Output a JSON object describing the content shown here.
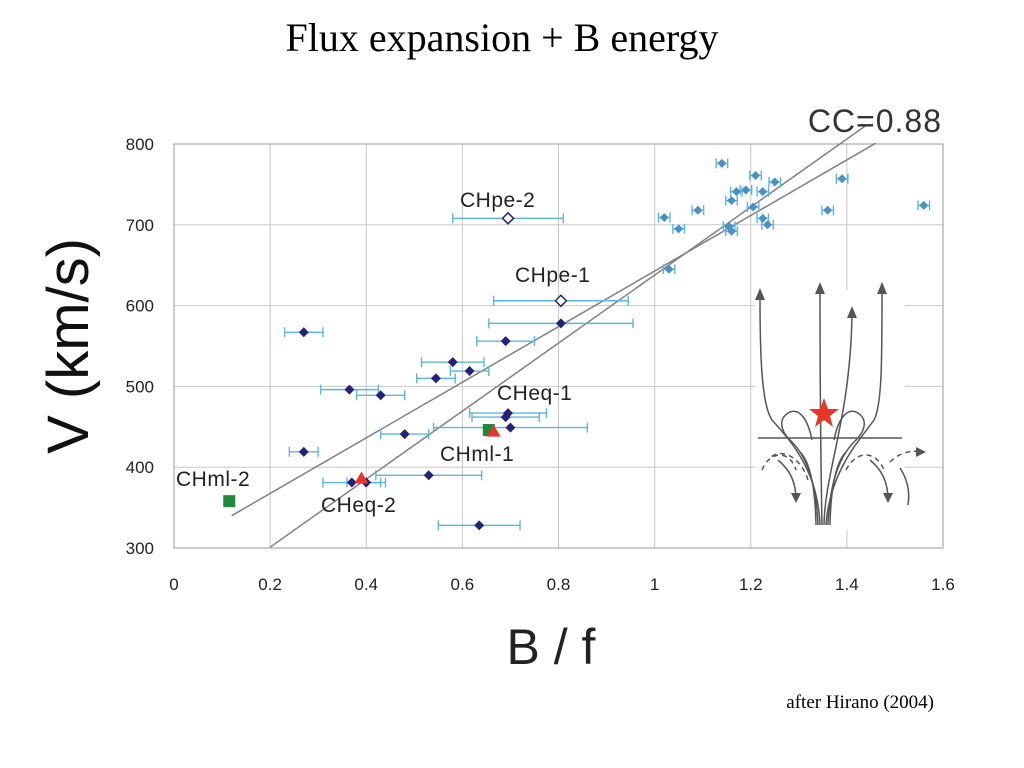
{
  "slide": {
    "title": "Flux expansion + B energy",
    "credit": "after Hirano (2004)"
  },
  "chart_data": {
    "type": "scatter",
    "title": "",
    "xlabel": "B / f",
    "ylabel": "V (km/s)",
    "xlim": [
      0,
      1.6
    ],
    "ylim": [
      300,
      800
    ],
    "xticks": [
      "0",
      "0.2",
      "0.4",
      "0.6",
      "0.8",
      "1",
      "1.2",
      "1.4",
      "1.6"
    ],
    "yticks": [
      "300",
      "400",
      "500",
      "600",
      "700",
      "800"
    ],
    "grid": true,
    "annotation": "CC=0.88",
    "colors": {
      "dark_point": "#27207a",
      "light_point": "#4a90c8",
      "error_bar": "#5bb7dd",
      "green_marker": "#1f8a3a",
      "red_marker": "#e8362a",
      "fit_line": "#808080",
      "grid": "#c8c8c8"
    },
    "series": [
      {
        "marker": "diamond",
        "color": "#27207a",
        "points": [
          {
            "x": 0.27,
            "y": 567,
            "xerr": 0.04
          },
          {
            "x": 0.27,
            "y": 419,
            "xerr": 0.03
          },
          {
            "x": 0.365,
            "y": 496,
            "xerr": 0.06
          },
          {
            "x": 0.43,
            "y": 489,
            "xerr": 0.05
          },
          {
            "x": 0.37,
            "y": 381,
            "xerr": 0.06
          },
          {
            "x": 0.4,
            "y": 381,
            "xerr": 0.04
          },
          {
            "x": 0.48,
            "y": 441,
            "xerr": 0.05
          },
          {
            "x": 0.53,
            "y": 390,
            "xerr": 0.11
          },
          {
            "x": 0.545,
            "y": 510,
            "xerr": 0.04
          },
          {
            "x": 0.58,
            "y": 530,
            "xerr": 0.065
          },
          {
            "x": 0.615,
            "y": 519,
            "xerr": 0.04
          },
          {
            "x": 0.635,
            "y": 328,
            "xerr": 0.085
          },
          {
            "x": 0.69,
            "y": 556,
            "xerr": 0.06
          },
          {
            "x": 0.69,
            "y": 462,
            "xerr": 0.07
          },
          {
            "x": 0.695,
            "y": 467,
            "xerr": 0.08
          },
          {
            "x": 0.7,
            "y": 449,
            "xerr": 0.16
          },
          {
            "x": 0.805,
            "y": 578,
            "xerr": 0.15
          }
        ]
      },
      {
        "marker": "diamond",
        "color": "#4a90c8",
        "points": [
          {
            "x": 1.02,
            "y": 709,
            "xerr": 0.012
          },
          {
            "x": 1.03,
            "y": 645,
            "xerr": 0.012
          },
          {
            "x": 1.05,
            "y": 695,
            "xerr": 0.012
          },
          {
            "x": 1.09,
            "y": 718,
            "xerr": 0.012
          },
          {
            "x": 1.14,
            "y": 776,
            "xerr": 0.012
          },
          {
            "x": 1.155,
            "y": 698,
            "xerr": 0.012
          },
          {
            "x": 1.16,
            "y": 692,
            "xerr": 0.012
          },
          {
            "x": 1.16,
            "y": 730,
            "xerr": 0.012
          },
          {
            "x": 1.17,
            "y": 741,
            "xerr": 0.012
          },
          {
            "x": 1.19,
            "y": 743,
            "xerr": 0.012
          },
          {
            "x": 1.205,
            "y": 722,
            "xerr": 0.012
          },
          {
            "x": 1.21,
            "y": 761,
            "xerr": 0.012
          },
          {
            "x": 1.225,
            "y": 741,
            "xerr": 0.012
          },
          {
            "x": 1.225,
            "y": 708,
            "xerr": 0.012
          },
          {
            "x": 1.235,
            "y": 700,
            "xerr": 0.012
          },
          {
            "x": 1.25,
            "y": 753,
            "xerr": 0.012
          },
          {
            "x": 1.36,
            "y": 718,
            "xerr": 0.012
          },
          {
            "x": 1.39,
            "y": 757,
            "xerr": 0.012
          },
          {
            "x": 1.56,
            "y": 724,
            "xerr": 0.012
          }
        ]
      },
      {
        "marker": "open-diamond",
        "color": "#27207a",
        "points": [
          {
            "x": 0.695,
            "y": 708,
            "xerr": 0.115,
            "label": "CHpe-2"
          },
          {
            "x": 0.805,
            "y": 606,
            "xerr": 0.14,
            "label": "CHpe-1"
          }
        ]
      },
      {
        "marker": "square",
        "color": "#1f8a3a",
        "points": [
          {
            "x": 0.115,
            "y": 358,
            "label": "CHml-2"
          },
          {
            "x": 0.655,
            "y": 446,
            "label": "CHml-1"
          }
        ]
      },
      {
        "marker": "triangle",
        "color": "#e8362a",
        "points": [
          {
            "x": 0.39,
            "y": 386,
            "label": "CHeq-2"
          },
          {
            "x": 0.665,
            "y": 444,
            "label": "CHeq-1"
          }
        ]
      }
    ],
    "fit_lines": [
      {
        "x": [
          0.12,
          1.46
        ],
        "y": [
          340,
          801
        ]
      },
      {
        "x": [
          0.2,
          1.44
        ],
        "y": [
          301,
          823
        ]
      }
    ]
  }
}
